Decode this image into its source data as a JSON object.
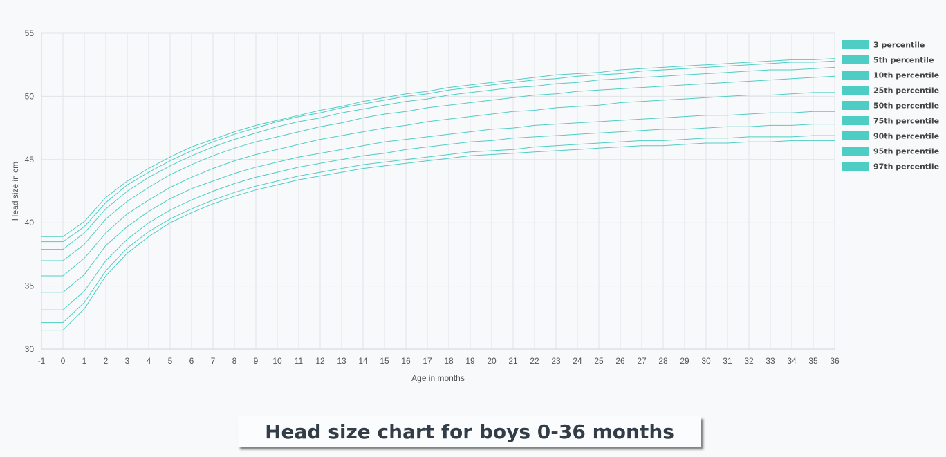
{
  "caption": "Head size chart for boys 0-36 months",
  "chart_data": {
    "type": "line",
    "xlabel": "Age in months",
    "ylabel": "Head size in cm",
    "xlim": [
      -1,
      36
    ],
    "ylim": [
      30,
      55
    ],
    "x_ticks": [
      -1,
      0,
      1,
      2,
      3,
      4,
      5,
      6,
      7,
      8,
      9,
      10,
      11,
      12,
      13,
      14,
      15,
      16,
      17,
      18,
      19,
      20,
      21,
      22,
      23,
      24,
      25,
      26,
      27,
      28,
      29,
      30,
      31,
      32,
      33,
      34,
      35,
      36
    ],
    "y_ticks": [
      30,
      35,
      40,
      45,
      50,
      55
    ],
    "grid": true,
    "legend_position": "right",
    "line_color": "#4ecdc4",
    "x": [
      -1,
      0,
      1,
      2,
      3,
      4,
      5,
      6,
      7,
      8,
      9,
      10,
      11,
      12,
      13,
      14,
      15,
      16,
      17,
      18,
      19,
      20,
      21,
      22,
      23,
      24,
      25,
      26,
      27,
      28,
      29,
      30,
      31,
      32,
      33,
      34,
      35,
      36
    ],
    "series": [
      {
        "name": "3 percentile",
        "values": [
          31.5,
          31.5,
          33.2,
          35.8,
          37.6,
          38.9,
          40.0,
          40.8,
          41.5,
          42.1,
          42.6,
          43.0,
          43.4,
          43.7,
          44.0,
          44.3,
          44.5,
          44.7,
          44.9,
          45.1,
          45.3,
          45.4,
          45.5,
          45.6,
          45.7,
          45.8,
          45.9,
          46.0,
          46.1,
          46.1,
          46.2,
          46.3,
          46.3,
          46.4,
          46.4,
          46.5,
          46.5,
          46.5
        ]
      },
      {
        "name": "5th percentile",
        "values": [
          32.1,
          32.1,
          33.7,
          36.2,
          38.0,
          39.3,
          40.3,
          41.1,
          41.8,
          42.4,
          42.9,
          43.3,
          43.7,
          44.0,
          44.3,
          44.6,
          44.8,
          45.0,
          45.2,
          45.4,
          45.6,
          45.7,
          45.8,
          46.0,
          46.1,
          46.2,
          46.3,
          46.4,
          46.5,
          46.5,
          46.6,
          46.7,
          46.7,
          46.8,
          46.8,
          46.8,
          46.9,
          46.9
        ]
      },
      {
        "name": "10th percentile",
        "values": [
          33.1,
          33.1,
          34.6,
          37.0,
          38.7,
          40.0,
          41.0,
          41.8,
          42.5,
          43.1,
          43.6,
          44.0,
          44.4,
          44.7,
          45.0,
          45.3,
          45.5,
          45.8,
          46.0,
          46.2,
          46.4,
          46.5,
          46.7,
          46.8,
          46.9,
          47.0,
          47.1,
          47.2,
          47.3,
          47.4,
          47.4,
          47.5,
          47.6,
          47.6,
          47.7,
          47.7,
          47.8,
          47.8
        ]
      },
      {
        "name": "25th percentile",
        "values": [
          34.5,
          34.5,
          35.9,
          38.2,
          39.7,
          40.9,
          41.9,
          42.7,
          43.3,
          43.9,
          44.4,
          44.8,
          45.2,
          45.5,
          45.8,
          46.1,
          46.4,
          46.6,
          46.8,
          47.0,
          47.2,
          47.4,
          47.5,
          47.7,
          47.8,
          47.9,
          48.0,
          48.1,
          48.2,
          48.3,
          48.4,
          48.5,
          48.5,
          48.6,
          48.7,
          48.7,
          48.8,
          48.8
        ]
      },
      {
        "name": "50th percentile",
        "values": [
          35.8,
          35.8,
          37.2,
          39.2,
          40.7,
          41.8,
          42.8,
          43.6,
          44.3,
          44.9,
          45.4,
          45.8,
          46.2,
          46.6,
          46.9,
          47.2,
          47.5,
          47.7,
          48.0,
          48.2,
          48.4,
          48.6,
          48.8,
          48.9,
          49.1,
          49.2,
          49.3,
          49.5,
          49.6,
          49.7,
          49.8,
          49.9,
          50.0,
          50.1,
          50.1,
          50.2,
          50.3,
          50.3
        ]
      },
      {
        "name": "75th percentile",
        "values": [
          37.0,
          37.0,
          38.3,
          40.3,
          41.7,
          42.8,
          43.8,
          44.6,
          45.3,
          45.9,
          46.4,
          46.8,
          47.2,
          47.6,
          47.9,
          48.3,
          48.6,
          48.8,
          49.1,
          49.3,
          49.5,
          49.7,
          49.9,
          50.1,
          50.2,
          50.4,
          50.5,
          50.6,
          50.7,
          50.8,
          50.9,
          51.0,
          51.1,
          51.2,
          51.3,
          51.4,
          51.5,
          51.6
        ]
      },
      {
        "name": "90th percentile",
        "values": [
          37.9,
          37.9,
          39.2,
          41.1,
          42.5,
          43.6,
          44.5,
          45.3,
          46.0,
          46.6,
          47.1,
          47.6,
          48.0,
          48.3,
          48.7,
          49.0,
          49.3,
          49.6,
          49.8,
          50.1,
          50.3,
          50.5,
          50.7,
          50.8,
          51.0,
          51.1,
          51.3,
          51.4,
          51.5,
          51.6,
          51.7,
          51.8,
          51.9,
          52.0,
          52.1,
          52.1,
          52.2,
          52.3
        ]
      },
      {
        "name": "95th percentile",
        "values": [
          38.5,
          38.5,
          39.7,
          41.6,
          43.0,
          44.0,
          44.9,
          45.7,
          46.4,
          47.0,
          47.5,
          48.0,
          48.4,
          48.7,
          49.1,
          49.4,
          49.7,
          50.0,
          50.2,
          50.5,
          50.7,
          50.9,
          51.1,
          51.3,
          51.4,
          51.6,
          51.7,
          51.8,
          52.0,
          52.1,
          52.2,
          52.3,
          52.4,
          52.5,
          52.6,
          52.7,
          52.7,
          52.8
        ]
      },
      {
        "name": "97th percentile",
        "values": [
          38.9,
          38.9,
          40.1,
          42.0,
          43.3,
          44.3,
          45.2,
          46.0,
          46.6,
          47.2,
          47.7,
          48.1,
          48.5,
          48.9,
          49.2,
          49.6,
          49.9,
          50.2,
          50.4,
          50.7,
          50.9,
          51.1,
          51.3,
          51.5,
          51.7,
          51.8,
          51.9,
          52.1,
          52.2,
          52.3,
          52.4,
          52.5,
          52.6,
          52.7,
          52.8,
          52.9,
          52.9,
          53.0
        ]
      }
    ]
  }
}
